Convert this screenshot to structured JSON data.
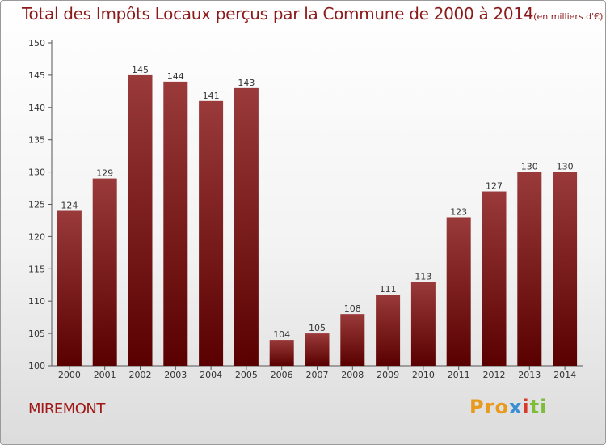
{
  "title": "Total des Impôts Locaux perçus par la Commune de 2000 à 2014",
  "title_unit": "(en milliers d'€)",
  "commune": "MIREMONT",
  "brand": {
    "logo_text": "Proxiti",
    "colors": [
      "#e89a1d",
      "#3a8fd3",
      "#d83a2b",
      "#7cbd3a"
    ]
  },
  "colors": {
    "bar_top": "#9a3a3a",
    "bar_bottom": "#5a0000",
    "title": "#8b1a1a"
  },
  "chart_data": {
    "type": "bar",
    "categories": [
      "2000",
      "2001",
      "2002",
      "2003",
      "2004",
      "2005",
      "2006",
      "2007",
      "2008",
      "2009",
      "2010",
      "2011",
      "2012",
      "2013",
      "2014"
    ],
    "values": [
      124,
      129,
      145,
      144,
      141,
      143,
      104,
      105,
      108,
      111,
      113,
      123,
      127,
      130,
      130
    ],
    "title": "Total des Impôts Locaux perçus par la Commune de 2000 à 2014",
    "ylim": [
      100,
      150
    ],
    "yticks": [
      100,
      105,
      110,
      115,
      120,
      125,
      130,
      135,
      140,
      145,
      150
    ],
    "grid": false,
    "legend": "none"
  }
}
